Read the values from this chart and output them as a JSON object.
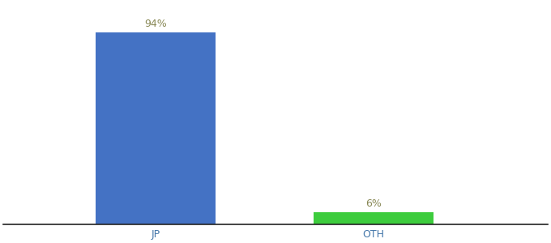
{
  "categories": [
    "JP",
    "OTH"
  ],
  "values": [
    94,
    6
  ],
  "bar_colors": [
    "#4472c4",
    "#3dcc3d"
  ],
  "labels": [
    "94%",
    "6%"
  ],
  "ylim": [
    0,
    108
  ],
  "background_color": "#ffffff",
  "label_fontsize": 9,
  "tick_fontsize": 9,
  "bar_width": 0.55,
  "xlabel_color": "#4477aa",
  "label_color": "#888855"
}
